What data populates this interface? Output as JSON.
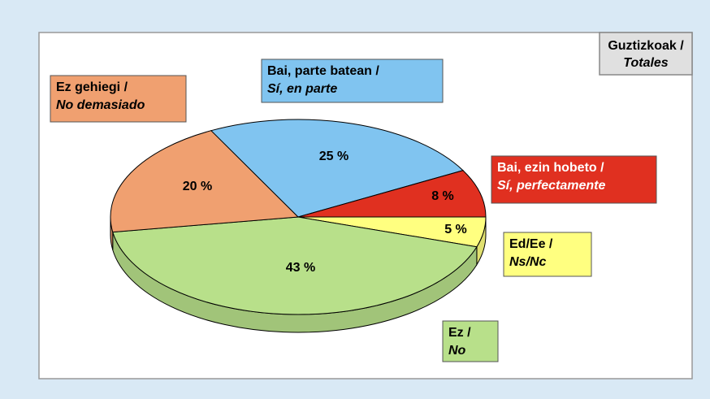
{
  "chart_data": {
    "type": "pie3d",
    "title": [
      "Guztizkoak /",
      "Totales"
    ],
    "categories": [
      [
        "Ed/Ee /",
        "Ns/Nc"
      ],
      [
        "Ez /",
        "No"
      ],
      [
        "Ez gehiegi /",
        "No demasiado"
      ],
      [
        "Bai, parte batean /",
        "Sí, en parte"
      ],
      [
        "Bai, ezin hobeto /",
        "Sí, perfectamente"
      ]
    ],
    "values": [
      5,
      43,
      20,
      25,
      8
    ],
    "value_labels": [
      "5 %",
      "43 %",
      "20 %",
      "25 %",
      "8 %"
    ],
    "colors": [
      "#ffff80",
      "#b8e08a",
      "#f0a070",
      "#80c4f0",
      "#e03020"
    ]
  }
}
